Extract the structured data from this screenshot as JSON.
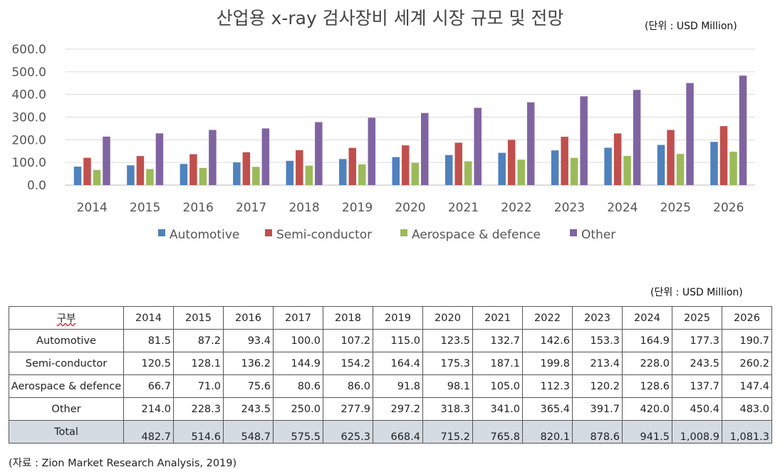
{
  "unit_label": "(단위 : USD Million)",
  "source": "(자료 : Zion Market Research Analysis, 2019)",
  "chart_data": {
    "type": "bar",
    "title": "산업용 x-ray 검사장비 세계 시장 규모 및 전망",
    "categories": [
      "2014",
      "2015",
      "2016",
      "2017",
      "2018",
      "2019",
      "2020",
      "2021",
      "2022",
      "2023",
      "2024",
      "2025",
      "2026"
    ],
    "ylim": [
      0,
      600
    ],
    "yticks": [
      "0.0",
      "100.0",
      "200.0",
      "300.0",
      "400.0",
      "500.0",
      "600.0"
    ],
    "grid": true,
    "legend": "bottom",
    "series": [
      {
        "name": "Automotive",
        "color": "#4F81BD",
        "values": [
          81.5,
          87.2,
          93.4,
          100.0,
          107.2,
          115.0,
          123.5,
          132.7,
          142.6,
          153.3,
          164.9,
          177.3,
          190.7
        ]
      },
      {
        "name": "Semi-conductor",
        "color": "#C0504D",
        "values": [
          120.5,
          128.1,
          136.2,
          144.9,
          154.2,
          164.4,
          175.3,
          187.1,
          199.8,
          213.4,
          228.0,
          243.5,
          260.2
        ]
      },
      {
        "name": "Aerospace & defence",
        "color": "#9BBB59",
        "values": [
          66.7,
          71.0,
          75.6,
          80.6,
          86.0,
          91.8,
          98.1,
          105.0,
          112.3,
          120.2,
          128.6,
          137.7,
          147.4
        ]
      },
      {
        "name": "Other",
        "color": "#8064A2",
        "values": [
          214.0,
          228.3,
          243.5,
          250.0,
          277.9,
          297.2,
          318.3,
          341.0,
          365.4,
          391.7,
          420.0,
          450.4,
          483.0
        ]
      }
    ]
  },
  "table": {
    "header_label": "구부",
    "years": [
      "2014",
      "2015",
      "2016",
      "2017",
      "2018",
      "2019",
      "2020",
      "2021",
      "2022",
      "2023",
      "2024",
      "2025",
      "2026"
    ],
    "rows": [
      {
        "label": "Automotive",
        "values": [
          "81.5",
          "87.2",
          "93.4",
          "100.0",
          "107.2",
          "115.0",
          "123.5",
          "132.7",
          "142.6",
          "153.3",
          "164.9",
          "177.3",
          "190.7"
        ]
      },
      {
        "label": "Semi-conductor",
        "values": [
          "120.5",
          "128.1",
          "136.2",
          "144.9",
          "154.2",
          "164.4",
          "175.3",
          "187.1",
          "199.8",
          "213.4",
          "228.0",
          "243.5",
          "260.2"
        ]
      },
      {
        "label": "Aerospace & defence",
        "values": [
          "66.7",
          "71.0",
          "75.6",
          "80.6",
          "86.0",
          "91.8",
          "98.1",
          "105.0",
          "112.3",
          "120.2",
          "128.6",
          "137.7",
          "147.4"
        ]
      },
      {
        "label": "Other",
        "values": [
          "214.0",
          "228.3",
          "243.5",
          "250.0",
          "277.9",
          "297.2",
          "318.3",
          "341.0",
          "365.4",
          "391.7",
          "420.0",
          "450.4",
          "483.0"
        ]
      },
      {
        "label": "Total",
        "values": [
          "482.7",
          "514.6",
          "548.7",
          "575.5",
          "625.3",
          "668.4",
          "715.2",
          "765.8",
          "820.1",
          "878.6",
          "941.5",
          "1,008.9",
          "1,081.3"
        ]
      }
    ]
  }
}
